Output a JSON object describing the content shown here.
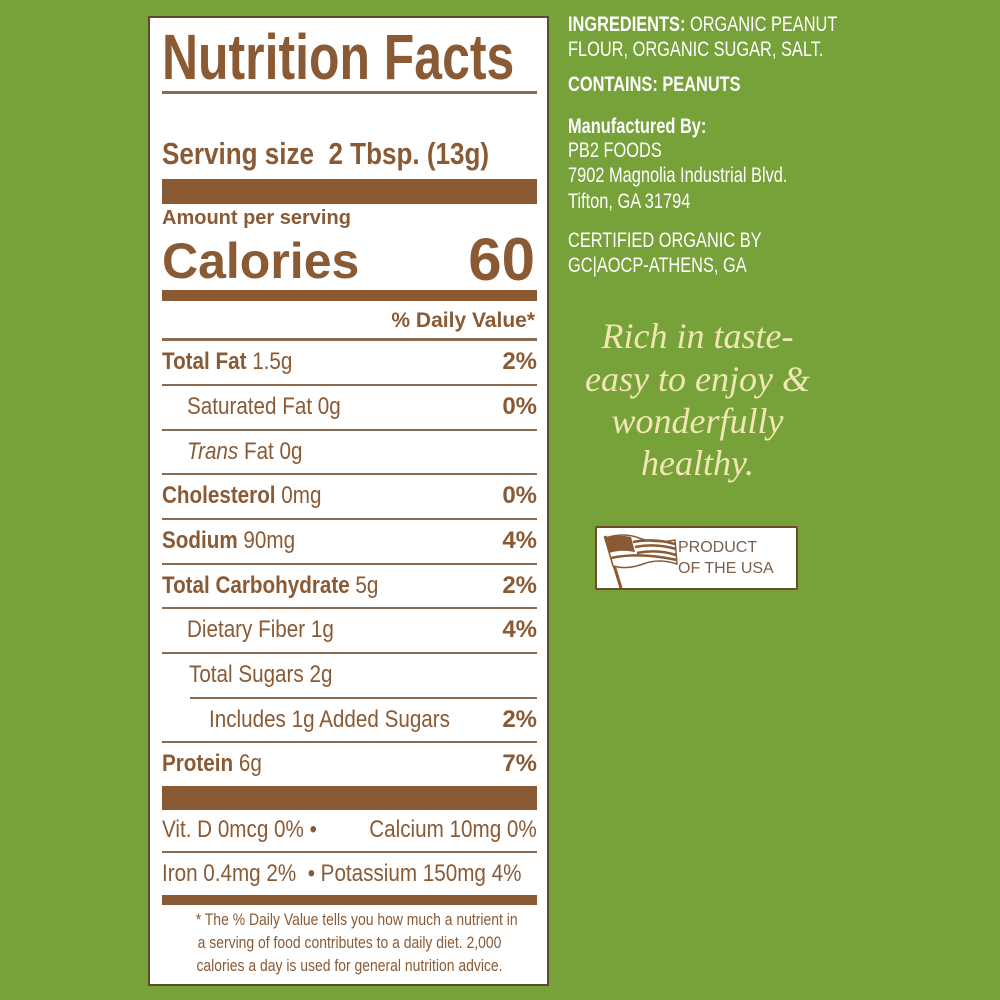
{
  "label": {
    "title": "Nutrition Facts",
    "serving_size_label": "Serving size",
    "serving_size_value": "2 Tbsp. (13g)",
    "amount_per_serving": "Amount per serving",
    "calories_label": "Calories",
    "calories_value": "60",
    "daily_value_header": "% Daily Value*",
    "nutrients": [
      {
        "name": "Total Fat",
        "amount": "1.5g",
        "dv": "2%"
      },
      {
        "name": "Saturated Fat",
        "amount": "0g",
        "dv": "0%"
      },
      {
        "name": "Trans",
        "name_rest": "Fat",
        "amount": "0g",
        "dv": ""
      },
      {
        "name": "Cholesterol",
        "amount": "0mg",
        "dv": "0%"
      },
      {
        "name": "Sodium",
        "amount": "90mg",
        "dv": "4%"
      },
      {
        "name": "Total Carbohydrate",
        "amount": "5g",
        "dv": "2%"
      },
      {
        "name": "Dietary Fiber",
        "amount": "1g",
        "dv": "4%"
      },
      {
        "name": "Total Sugars",
        "amount": "2g",
        "dv": ""
      },
      {
        "name": "Includes 1g Added Sugars",
        "amount": "",
        "dv": "2%"
      },
      {
        "name": "Protein",
        "amount": "6g",
        "dv": "7%"
      }
    ],
    "vitamins": {
      "vit_d": "Vit. D 0mcg 0%",
      "calcium": "Calcium 10mg 0%",
      "iron": "Iron 0.4mg 2%",
      "potassium": "Potassium 150mg 4%",
      "bullet": "•"
    },
    "footnote": [
      "* The % Daily Value tells you how much a nutrient in",
      "a serving of food contributes to a daily diet. 2,000",
      "calories a day is used for general nutrition advice."
    ]
  },
  "info": {
    "ingredients_label": "INGREDIENTS:",
    "ingredients_line1": "ORGANIC PEANUT",
    "ingredients_line2": "FLOUR, ORGANIC SUGAR, SALT.",
    "contains": "CONTAINS: PEANUTS",
    "manufactured_by": "Manufactured By:",
    "company": "PB2 FOODS",
    "address1": "7902 Magnolia Industrial Blvd.",
    "address2": "Tifton, GA 31794",
    "certified1": "CERTIFIED ORGANIC BY",
    "certified2": "GC|AOCP-ATHENS, GA"
  },
  "tagline": [
    "Rich in taste-",
    "easy to enjoy &",
    "wonderfully",
    "healthy."
  ],
  "badge": {
    "line1": "PRODUCT",
    "line2": "OF THE USA",
    "icon": "us-flag-icon"
  },
  "colors": {
    "background": "#77a23a",
    "brown": "#8a5a34",
    "cream": "#f2e7b3"
  }
}
